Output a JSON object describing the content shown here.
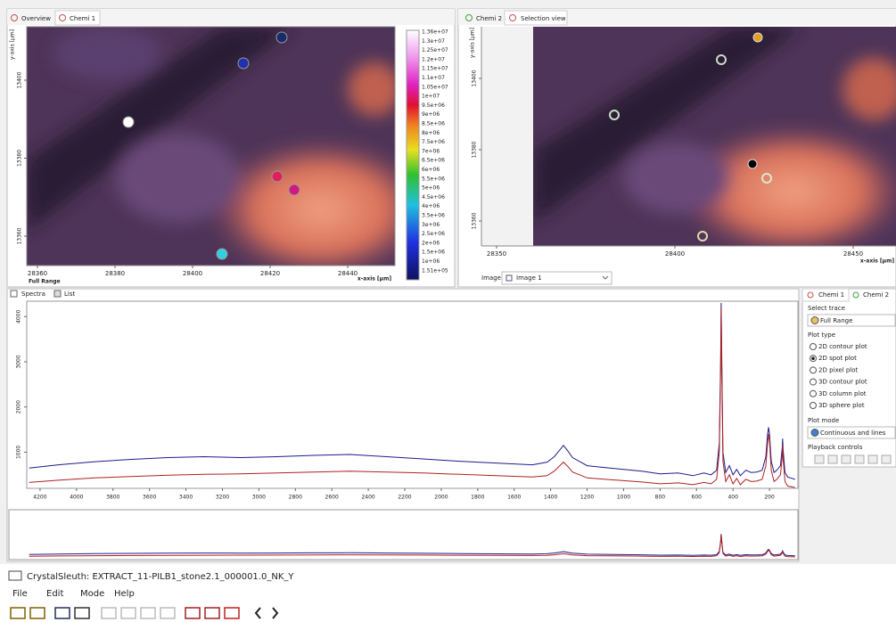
{
  "left_panel": {
    "tabs": [
      "Overview",
      "Chemi 1"
    ],
    "y_axis_label": "y-axis [µm]",
    "x_axis_label": "x-axis [µm]",
    "yticks": [
      13400,
      13380,
      13360
    ],
    "xticks": [
      28360,
      28380,
      28400,
      28420,
      28440
    ],
    "range_label": "Full Range",
    "colorbar_labels": [
      "1.36e+07",
      "1.3e+07",
      "1.25e+07",
      "1.2e+07",
      "1.15e+07",
      "1.1e+07",
      "1.05e+07",
      "1e+07",
      "9.5e+06",
      "9e+06",
      "8.5e+06",
      "8e+06",
      "7.5e+06",
      "7e+06",
      "6.5e+06",
      "6e+06",
      "5.5e+06",
      "5e+06",
      "4.5e+06",
      "4e+06",
      "3.5e+06",
      "3e+06",
      "2.5e+06",
      "2e+06",
      "1.5e+06",
      "1e+06",
      "1.51e+05"
    ]
  },
  "right_panel": {
    "tabs": [
      "Chemi 2",
      "Selection view"
    ],
    "y_axis_label": "y-axis [µm]",
    "x_axis_label": "x-axis [µm]",
    "yticks": [
      13400,
      13380,
      13360
    ],
    "xticks": [
      28350,
      28400,
      28450
    ],
    "image_label": "Image:",
    "image_select": "Image 1"
  },
  "spectra_tabs": [
    "Spectra",
    "List"
  ],
  "chart_data": {
    "type": "line",
    "x": [
      4260,
      4100,
      3900,
      3700,
      3500,
      3300,
      3100,
      2900,
      2700,
      2500,
      2300,
      2100,
      1900,
      1700,
      1500,
      1420,
      1380,
      1350,
      1330,
      1310,
      1280,
      1200,
      1100,
      1000,
      900,
      800,
      700,
      620,
      560,
      520,
      490,
      475,
      468,
      465,
      462,
      455,
      440,
      420,
      400,
      380,
      360,
      330,
      300,
      270,
      240,
      220,
      210,
      205,
      200,
      190,
      175,
      160,
      140,
      130,
      128,
      125,
      115,
      100,
      60
    ],
    "series": [
      {
        "color": "#1c1c8c",
        "values": [
          650,
          720,
          790,
          840,
          880,
          900,
          880,
          900,
          930,
          950,
          900,
          850,
          800,
          760,
          720,
          780,
          900,
          1050,
          1150,
          1050,
          880,
          700,
          660,
          620,
          580,
          520,
          540,
          480,
          540,
          500,
          600,
          1200,
          3000,
          4300,
          3200,
          1000,
          550,
          700,
          500,
          620,
          480,
          600,
          550,
          560,
          600,
          900,
          1400,
          1550,
          1400,
          800,
          550,
          600,
          700,
          1100,
          1300,
          1050,
          550,
          450,
          400
        ]
      },
      {
        "color": "#b02020",
        "values": [
          330,
          380,
          430,
          460,
          490,
          510,
          520,
          540,
          560,
          580,
          560,
          540,
          510,
          480,
          450,
          480,
          580,
          700,
          780,
          700,
          560,
          430,
          400,
          370,
          340,
          300,
          320,
          280,
          330,
          300,
          400,
          1000,
          2800,
          4200,
          3000,
          800,
          350,
          500,
          300,
          420,
          280,
          400,
          350,
          360,
          400,
          700,
          1200,
          1400,
          1250,
          600,
          350,
          400,
          500,
          900,
          1150,
          850,
          350,
          250,
          220
        ]
      }
    ],
    "xlim": [
      4273,
      44
    ],
    "ylim": [
      200,
      4340
    ],
    "xticks": [
      4200,
      4000,
      3800,
      3600,
      3400,
      3200,
      3000,
      2800,
      2600,
      2400,
      2200,
      2000,
      1800,
      1600,
      1400,
      1200,
      1000,
      800,
      600,
      400,
      200
    ],
    "yticks": [
      1000,
      2000,
      3000,
      4000
    ]
  },
  "side_panel": {
    "tabs": [
      "Chemi 1",
      "Chemi 2"
    ],
    "select_trace_label": "Select trace",
    "trace": "Full Range",
    "plot_type_label": "Plot type",
    "plot_types": [
      "2D contour plot",
      "2D spot plot",
      "2D pixel plot",
      "3D contour plot",
      "3D column plot",
      "3D sphere plot"
    ],
    "plot_mode_label": "Plot mode",
    "plot_mode": "Continuous and lines",
    "playback_label": "Playback controls"
  },
  "window": {
    "title": "CrystalSleuth: EXTRACT_11-PILB1_stone2.1_000001.0_NK_Y",
    "menu": [
      "File",
      "Edit",
      "Mode",
      "Help"
    ]
  }
}
